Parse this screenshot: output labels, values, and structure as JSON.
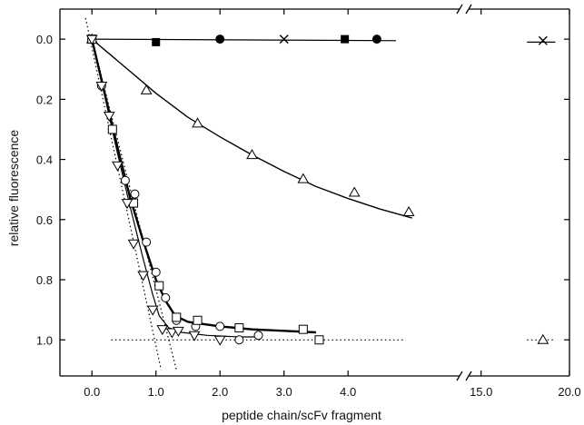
{
  "chart_data": {
    "type": "scatter",
    "title": "",
    "xlabel": "peptide chain/scFv fragment",
    "ylabel": "relative fluorescence",
    "xlim_segment1": [
      -0.5,
      5.7
    ],
    "xlim_segment2": [
      14.5,
      20.0
    ],
    "ylim": [
      1.12,
      -0.1
    ],
    "y_inverted": true,
    "grid": false,
    "x_ticks": [
      {
        "value": 0.0,
        "label": "0.0"
      },
      {
        "value": 1.0,
        "label": "1.0"
      },
      {
        "value": 2.0,
        "label": "2.0"
      },
      {
        "value": 3.0,
        "label": "3.0"
      },
      {
        "value": 4.0,
        "label": "4.0"
      },
      {
        "value": 15.0,
        "label": "15.0"
      },
      {
        "value": 20.0,
        "label": "20.0"
      }
    ],
    "y_ticks": [
      {
        "value": 0.0,
        "label": "0.0"
      },
      {
        "value": 0.2,
        "label": "0.2"
      },
      {
        "value": 0.4,
        "label": "0.4"
      },
      {
        "value": 0.6,
        "label": "0.6"
      },
      {
        "value": 0.8,
        "label": "0.8"
      },
      {
        "value": 1.0,
        "label": "1.0"
      }
    ],
    "series": [
      {
        "marker": "circle-filled",
        "points": [
          [
            2.0,
            0.0
          ],
          [
            4.45,
            0.0
          ]
        ]
      },
      {
        "marker": "square-filled",
        "points": [
          [
            1.0,
            0.01
          ],
          [
            3.95,
            0.0
          ]
        ]
      },
      {
        "marker": "cross",
        "points": [
          [
            3.0,
            0.0
          ],
          [
            18.5,
            0.005
          ]
        ]
      },
      {
        "marker": "triangle-up-open",
        "points": [
          [
            0.0,
            0.0
          ],
          [
            0.85,
            0.17
          ],
          [
            1.65,
            0.28
          ],
          [
            2.5,
            0.385
          ],
          [
            3.3,
            0.465
          ],
          [
            4.1,
            0.51
          ],
          [
            4.95,
            0.575
          ],
          [
            18.5,
            1.0
          ]
        ]
      },
      {
        "marker": "circle-open",
        "points": [
          [
            0.0,
            0.0
          ],
          [
            0.15,
            0.155
          ],
          [
            0.32,
            0.3
          ],
          [
            0.52,
            0.47
          ],
          [
            0.67,
            0.515
          ],
          [
            0.85,
            0.675
          ],
          [
            1.0,
            0.775
          ],
          [
            1.15,
            0.86
          ],
          [
            1.32,
            0.935
          ],
          [
            1.62,
            0.955
          ],
          [
            2.0,
            0.955
          ],
          [
            2.3,
            1.0
          ],
          [
            2.6,
            0.985
          ]
        ]
      },
      {
        "marker": "square-open",
        "points": [
          [
            0.0,
            0.0
          ],
          [
            0.32,
            0.3
          ],
          [
            0.65,
            0.545
          ],
          [
            1.05,
            0.82
          ],
          [
            1.32,
            0.925
          ],
          [
            1.65,
            0.935
          ],
          [
            2.3,
            0.96
          ],
          [
            3.3,
            0.965
          ],
          [
            3.55,
            1.0
          ]
        ]
      },
      {
        "marker": "triangle-down-open",
        "points": [
          [
            0.0,
            0.0
          ],
          [
            0.15,
            0.155
          ],
          [
            0.27,
            0.255
          ],
          [
            0.4,
            0.42
          ],
          [
            0.55,
            0.545
          ],
          [
            0.65,
            0.68
          ],
          [
            0.8,
            0.785
          ],
          [
            0.95,
            0.9
          ],
          [
            1.1,
            0.965
          ],
          [
            1.25,
            0.975
          ],
          [
            1.35,
            0.97
          ],
          [
            1.6,
            0.985
          ],
          [
            2.0,
            1.0
          ]
        ]
      }
    ],
    "curves": [
      {
        "style": "solid",
        "width": 1.2,
        "points": [
          [
            0.0,
            0.0
          ],
          [
            4.75,
            0.005
          ]
        ]
      },
      {
        "style": "solid",
        "width": 1.2,
        "points": [
          [
            17.6,
            0.01
          ],
          [
            19.2,
            0.01
          ]
        ]
      },
      {
        "style": "solid",
        "width": 1.4,
        "points": [
          [
            0.0,
            0.0
          ],
          [
            0.5,
            0.09
          ],
          [
            1.0,
            0.18
          ],
          [
            1.5,
            0.26
          ],
          [
            2.0,
            0.325
          ],
          [
            2.5,
            0.385
          ],
          [
            3.0,
            0.44
          ],
          [
            3.5,
            0.49
          ],
          [
            4.0,
            0.53
          ],
          [
            4.5,
            0.565
          ],
          [
            5.0,
            0.595
          ]
        ]
      },
      {
        "style": "solid",
        "width": 2.4,
        "points": [
          [
            0.0,
            0.0
          ],
          [
            0.2,
            0.18
          ],
          [
            0.4,
            0.36
          ],
          [
            0.6,
            0.53
          ],
          [
            0.8,
            0.67
          ],
          [
            1.0,
            0.8
          ],
          [
            1.15,
            0.87
          ],
          [
            1.3,
            0.92
          ],
          [
            1.5,
            0.94
          ],
          [
            2.0,
            0.955
          ],
          [
            2.5,
            0.965
          ],
          [
            3.0,
            0.97
          ],
          [
            3.5,
            0.975
          ]
        ]
      },
      {
        "style": "solid",
        "width": 1.2,
        "points": [
          [
            0.0,
            0.0
          ],
          [
            0.2,
            0.19
          ],
          [
            0.4,
            0.38
          ],
          [
            0.6,
            0.56
          ],
          [
            0.8,
            0.73
          ],
          [
            0.95,
            0.85
          ],
          [
            1.05,
            0.92
          ],
          [
            1.2,
            0.96
          ],
          [
            1.4,
            0.975
          ],
          [
            1.8,
            0.985
          ],
          [
            2.3,
            0.99
          ],
          [
            2.6,
            0.99
          ]
        ]
      },
      {
        "style": "dotted",
        "width": 1.2,
        "points": [
          [
            -0.1,
            -0.07
          ],
          [
            1.08,
            1.1
          ]
        ]
      },
      {
        "style": "dotted",
        "width": 1.2,
        "points": [
          [
            0.0,
            0.0
          ],
          [
            1.32,
            1.1
          ]
        ]
      },
      {
        "style": "dotted",
        "width": 1.2,
        "points": [
          [
            0.3,
            1.0
          ],
          [
            4.9,
            1.0
          ]
        ]
      },
      {
        "style": "dotted",
        "width": 1.2,
        "points": [
          [
            17.6,
            1.0
          ],
          [
            19.2,
            1.0
          ]
        ]
      }
    ]
  }
}
